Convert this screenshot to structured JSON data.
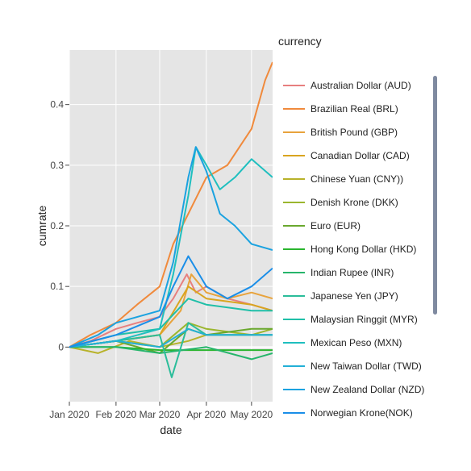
{
  "chart_data": {
    "type": "line",
    "xlabel": "date",
    "ylabel": "cumrate",
    "x_ticks": [
      "Jan 2020",
      "Feb 2020",
      "Mar 2020",
      "Apr 2020",
      "May 2020"
    ],
    "y_ticks": [
      "0",
      "0.1",
      "0.2",
      "0.3",
      "0.4"
    ],
    "xlim": [
      "2020-01-01",
      "2020-05-15"
    ],
    "ylim": [
      -0.09,
      0.49
    ],
    "grid": true,
    "legend_title": "currency",
    "legend_position": "right",
    "series": [
      {
        "name": "Australian Dollar (AUD)",
        "color": "#e77f7f",
        "points": [
          [
            "2020-01-01",
            0
          ],
          [
            "2020-01-15",
            0.01
          ],
          [
            "2020-02-01",
            0.03
          ],
          [
            "2020-02-15",
            0.04
          ],
          [
            "2020-03-01",
            0.05
          ],
          [
            "2020-03-10",
            0.08
          ],
          [
            "2020-03-19",
            0.12
          ],
          [
            "2020-03-25",
            0.09
          ],
          [
            "2020-04-01",
            0.1
          ],
          [
            "2020-04-15",
            0.08
          ],
          [
            "2020-05-01",
            0.07
          ],
          [
            "2020-05-15",
            0.06
          ]
        ]
      },
      {
        "name": "Brazilian Real (BRL)",
        "color": "#f08a3c",
        "points": [
          [
            "2020-01-01",
            0
          ],
          [
            "2020-01-15",
            0.02
          ],
          [
            "2020-02-01",
            0.04
          ],
          [
            "2020-02-15",
            0.07
          ],
          [
            "2020-03-01",
            0.1
          ],
          [
            "2020-03-10",
            0.17
          ],
          [
            "2020-03-20",
            0.22
          ],
          [
            "2020-04-01",
            0.28
          ],
          [
            "2020-04-15",
            0.3
          ],
          [
            "2020-05-01",
            0.36
          ],
          [
            "2020-05-10",
            0.44
          ],
          [
            "2020-05-15",
            0.47
          ]
        ]
      },
      {
        "name": "British Pound (GBP)",
        "color": "#e8a33c",
        "points": [
          [
            "2020-01-01",
            0
          ],
          [
            "2020-02-01",
            0.01
          ],
          [
            "2020-03-01",
            0.02
          ],
          [
            "2020-03-15",
            0.06
          ],
          [
            "2020-03-22",
            0.12
          ],
          [
            "2020-04-01",
            0.09
          ],
          [
            "2020-04-15",
            0.08
          ],
          [
            "2020-05-01",
            0.09
          ],
          [
            "2020-05-15",
            0.08
          ]
        ]
      },
      {
        "name": "Canadian Dollar (CAD)",
        "color": "#d9a520",
        "points": [
          [
            "2020-01-01",
            0
          ],
          [
            "2020-02-01",
            0.01
          ],
          [
            "2020-03-01",
            0.02
          ],
          [
            "2020-03-20",
            0.1
          ],
          [
            "2020-04-01",
            0.08
          ],
          [
            "2020-05-01",
            0.07
          ],
          [
            "2020-05-15",
            0.06
          ]
        ]
      },
      {
        "name": "Chinese Yuan (CNY))",
        "color": "#b8b22a",
        "points": [
          [
            "2020-01-01",
            0
          ],
          [
            "2020-01-20",
            -0.01
          ],
          [
            "2020-02-10",
            0.01
          ],
          [
            "2020-03-01",
            0.0
          ],
          [
            "2020-03-20",
            0.01
          ],
          [
            "2020-04-01",
            0.02
          ],
          [
            "2020-05-01",
            0.02
          ],
          [
            "2020-05-15",
            0.02
          ]
        ]
      },
      {
        "name": "Denish Krone (DKK)",
        "color": "#9bb62e",
        "points": [
          [
            "2020-01-01",
            0
          ],
          [
            "2020-02-01",
            0.01
          ],
          [
            "2020-03-01",
            0.0
          ],
          [
            "2020-03-20",
            0.04
          ],
          [
            "2020-04-01",
            0.03
          ],
          [
            "2020-05-01",
            0.02
          ],
          [
            "2020-05-15",
            0.03
          ]
        ]
      },
      {
        "name": "Euro (EUR)",
        "color": "#6aa82e",
        "points": [
          [
            "2020-01-01",
            0
          ],
          [
            "2020-02-01",
            0.01
          ],
          [
            "2020-03-01",
            -0.01
          ],
          [
            "2020-03-20",
            0.03
          ],
          [
            "2020-04-01",
            0.02
          ],
          [
            "2020-05-01",
            0.03
          ],
          [
            "2020-05-15",
            0.03
          ]
        ]
      },
      {
        "name": "Hong Kong Dollar (HKD)",
        "color": "#2ab52e",
        "points": [
          [
            "2020-01-01",
            0
          ],
          [
            "2020-02-01",
            0.0
          ],
          [
            "2020-03-01",
            -0.005
          ],
          [
            "2020-04-01",
            -0.005
          ],
          [
            "2020-05-15",
            -0.005
          ]
        ]
      },
      {
        "name": "Indian Rupee (INR)",
        "color": "#26b56b",
        "points": [
          [
            "2020-01-01",
            0
          ],
          [
            "2020-02-01",
            0.0
          ],
          [
            "2020-03-01",
            -0.01
          ],
          [
            "2020-04-01",
            0.0
          ],
          [
            "2020-05-01",
            -0.02
          ],
          [
            "2020-05-15",
            -0.01
          ]
        ]
      },
      {
        "name": "Japanese Yen (JPY)",
        "color": "#2bbd9a",
        "points": [
          [
            "2020-01-01",
            0
          ],
          [
            "2020-02-01",
            0.01
          ],
          [
            "2020-03-01",
            0.02
          ],
          [
            "2020-03-09",
            -0.05
          ],
          [
            "2020-03-20",
            0.04
          ],
          [
            "2020-04-01",
            0.02
          ],
          [
            "2020-05-01",
            0.02
          ],
          [
            "2020-05-15",
            0.02
          ]
        ]
      },
      {
        "name": "Malaysian Ringgit (MYR)",
        "color": "#1fbfa8",
        "points": [
          [
            "2020-01-01",
            0
          ],
          [
            "2020-02-01",
            0.02
          ],
          [
            "2020-03-01",
            0.03
          ],
          [
            "2020-03-20",
            0.08
          ],
          [
            "2020-04-01",
            0.07
          ],
          [
            "2020-05-01",
            0.06
          ],
          [
            "2020-05-15",
            0.06
          ]
        ]
      },
      {
        "name": "Mexican Peso (MXN)",
        "color": "#1fbfbf",
        "points": [
          [
            "2020-01-01",
            0
          ],
          [
            "2020-02-01",
            0.01
          ],
          [
            "2020-03-01",
            0.03
          ],
          [
            "2020-03-10",
            0.12
          ],
          [
            "2020-03-20",
            0.25
          ],
          [
            "2020-03-25",
            0.33
          ],
          [
            "2020-04-01",
            0.3
          ],
          [
            "2020-04-10",
            0.26
          ],
          [
            "2020-04-20",
            0.28
          ],
          [
            "2020-05-01",
            0.31
          ],
          [
            "2020-05-15",
            0.28
          ]
        ]
      },
      {
        "name": "New Taiwan Dollar (TWD)",
        "color": "#22b0d6",
        "points": [
          [
            "2020-01-01",
            0
          ],
          [
            "2020-02-01",
            0.01
          ],
          [
            "2020-03-01",
            0.0
          ],
          [
            "2020-03-20",
            0.03
          ],
          [
            "2020-04-01",
            0.02
          ],
          [
            "2020-05-01",
            0.02
          ],
          [
            "2020-05-15",
            0.02
          ]
        ]
      },
      {
        "name": "New Zealand Dollar (NZD)",
        "color": "#1aa2e0",
        "points": [
          [
            "2020-01-01",
            0
          ],
          [
            "2020-01-20",
            0.02
          ],
          [
            "2020-02-01",
            0.04
          ],
          [
            "2020-03-01",
            0.06
          ],
          [
            "2020-03-10",
            0.14
          ],
          [
            "2020-03-20",
            0.28
          ],
          [
            "2020-03-25",
            0.33
          ],
          [
            "2020-04-01",
            0.29
          ],
          [
            "2020-04-10",
            0.22
          ],
          [
            "2020-04-20",
            0.2
          ],
          [
            "2020-05-01",
            0.17
          ],
          [
            "2020-05-15",
            0.16
          ]
        ]
      },
      {
        "name": "Norwegian Krone(NOK)",
        "color": "#1a8ee8",
        "points": [
          [
            "2020-01-01",
            0
          ],
          [
            "2020-02-01",
            0.02
          ],
          [
            "2020-03-01",
            0.05
          ],
          [
            "2020-03-10",
            0.1
          ],
          [
            "2020-03-20",
            0.15
          ],
          [
            "2020-04-01",
            0.1
          ],
          [
            "2020-04-15",
            0.08
          ],
          [
            "2020-05-01",
            0.1
          ],
          [
            "2020-05-15",
            0.13
          ]
        ]
      }
    ]
  }
}
